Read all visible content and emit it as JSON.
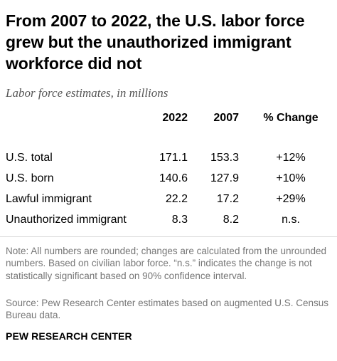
{
  "title": "From 2007 to 2022, the U.S. labor force grew but the unauthorized immigrant workforce did not",
  "subtitle": "Labor force estimates, in millions",
  "chart_data": {
    "type": "table",
    "columns": [
      "2022",
      "2007",
      "% Change"
    ],
    "rows": [
      {
        "label": "U.S. total",
        "v2022": "171.1",
        "v2007": "153.3",
        "change": "+12%"
      },
      {
        "label": "U.S. born",
        "v2022": "140.6",
        "v2007": "127.9",
        "change": "+10%"
      },
      {
        "label": "Lawful immigrant",
        "v2022": "22.2",
        "v2007": "17.2",
        "change": "+29%"
      },
      {
        "label": "Unauthorized immigrant",
        "v2022": "8.3",
        "v2007": "8.2",
        "change": "n.s."
      }
    ]
  },
  "note": "Note: All numbers are rounded; changes are calculated from the unrounded numbers. Based on civilian labor force. “n.s.” indicates the change is not statistically significant based on 90% confidence interval.",
  "source": "Source: Pew Research Center estimates based on augmented U.S. Census Bureau data.",
  "brand": "PEW RESEARCH CENTER",
  "colors": {
    "text": "#000000",
    "subtitle": "#555555",
    "note": "#767676",
    "rule": "#d9d9d9"
  }
}
